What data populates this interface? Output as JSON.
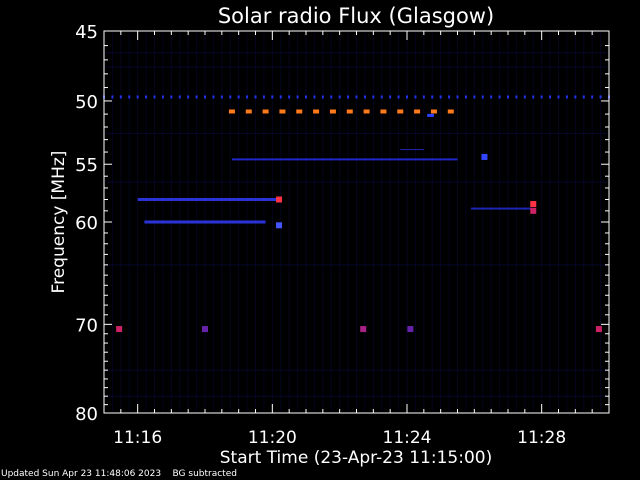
{
  "chart_data": {
    "type": "heatmap",
    "title": "Solar radio Flux (Glasgow)",
    "xlabel": "Start Time (23-Apr-23 11:15:00)",
    "ylabel": "Frequency [MHz]",
    "x_start_minutes": 15.0,
    "x_range_minutes": [
      15.0,
      30.0
    ],
    "x_ticks": [
      {
        "minute": 16,
        "label": "11:16"
      },
      {
        "minute": 20,
        "label": "11:20"
      },
      {
        "minute": 24,
        "label": "11:24"
      },
      {
        "minute": 28,
        "label": "11:28"
      }
    ],
    "y_scale": "log",
    "ylim": [
      45,
      80
    ],
    "y_ticks": [
      45,
      50,
      55,
      60,
      70,
      80
    ],
    "background_color": "#000000",
    "features": [
      {
        "name": "channel-49.7",
        "freq": 49.7,
        "t_start": 15.0,
        "t_end": 30.0,
        "style": "dots",
        "step": 0.25,
        "color": "#2233ee",
        "h": 3
      },
      {
        "name": "rfi-50.8",
        "freq": 50.8,
        "t_start": 18.8,
        "t_end": 25.5,
        "style": "dots",
        "step": 0.5,
        "color": "#ff7a1a",
        "h": 4
      },
      {
        "name": "channel-54.6",
        "freq": 54.6,
        "t_start": 18.8,
        "t_end": 25.5,
        "style": "line",
        "color": "#1f28c8",
        "h": 2
      },
      {
        "name": "burst-58",
        "freq": 58.0,
        "t_start": 16.0,
        "t_end": 20.2,
        "style": "line",
        "color": "#2a33d8",
        "h": 3
      },
      {
        "name": "burst-60",
        "freq": 60.0,
        "t_start": 16.2,
        "t_end": 19.8,
        "style": "line",
        "color": "#2a33d8",
        "h": 3
      },
      {
        "name": "band-58.8",
        "freq": 58.8,
        "t_start": 25.9,
        "t_end": 27.7,
        "style": "line",
        "color": "#1c26b0",
        "h": 2
      },
      {
        "name": "point-53.8",
        "freq": 53.8,
        "t_start": 23.8,
        "t_end": 24.5,
        "style": "line",
        "color": "#1c26b0",
        "h": 1
      },
      {
        "name": "point-51.1",
        "freq": 51.1,
        "t_start": 24.6,
        "t_end": 24.8,
        "style": "line",
        "color": "#3040ff",
        "h": 3
      }
    ],
    "hotspots": [
      {
        "t": 20.2,
        "freq": 58.0,
        "color": "#ff3344"
      },
      {
        "t": 20.2,
        "freq": 60.3,
        "color": "#4455ff"
      },
      {
        "t": 27.75,
        "freq": 58.4,
        "color": "#ff3344"
      },
      {
        "t": 27.75,
        "freq": 59.0,
        "color": "#cc2266"
      },
      {
        "t": 26.3,
        "freq": 54.4,
        "color": "#3344ff"
      },
      {
        "t": 15.45,
        "freq": 70.5,
        "color": "#cc2266"
      },
      {
        "t": 22.7,
        "freq": 70.5,
        "color": "#aa2288"
      },
      {
        "t": 29.7,
        "freq": 70.5,
        "color": "#cc2266"
      },
      {
        "t": 18.0,
        "freq": 70.5,
        "color": "#6622aa"
      },
      {
        "t": 24.1,
        "freq": 70.5,
        "color": "#6622aa"
      }
    ]
  },
  "footer": {
    "status_text": "Updated Sun Apr 23 11:48:06 2023    BG subtracted"
  }
}
